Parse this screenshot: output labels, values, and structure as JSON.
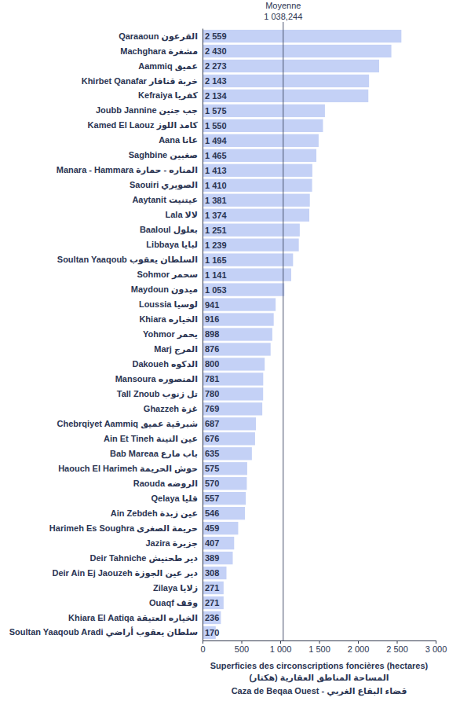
{
  "chart_data": {
    "type": "bar",
    "orientation": "horizontal",
    "categories": [
      "Qaraaoun القرعون",
      "Machghara مشغرة",
      "Aammiq عميق",
      "Khirbet Qanafar خربة قنافار",
      "Kefraiya كفريا",
      "Joubb Jannine جب جنين",
      "Kamed El Laouz كامد اللوز",
      "Aana عانا",
      "Saghbine صغبين",
      "Manara - Hammara المناره - حمارة",
      "Saouiri الصويري",
      "Aaytanit عيتنيت",
      "Lala لالا",
      "Baaloul بعلول",
      "Libbaya لبايا",
      "Soultan Yaaqoub السلطان يعقوب",
      "Sohmor سحمر",
      "Maydoun ميدون",
      "Loussia لوسيا",
      "Khiara الخياره",
      "Yohmor يحمر",
      "Marj المرج",
      "Dakoueh الدكوه",
      "Mansoura المنصوره",
      "Tall Znoub تل زنوب",
      "Ghazzeh غزة",
      "Chebrqiyet Aammiq شبرقية عميق",
      "Ain Et Tineh عين التينة",
      "Bab Mareaa باب مارع",
      "Haouch El Harimeh حوش الحريمة",
      "Raouda الروضه",
      "Qelaya قليا",
      "Ain Zebdeh عين زبدة",
      "Harimeh Es Soughra حريمة الصغرى",
      "Jazira جزيرة",
      "Deir Tahniche دير طحنيش",
      "Deir Ain Ej Jaouzeh دير عين الجوزة",
      "Zilaya زلايا",
      "Ouaqf وقف",
      "Khiara El Aatiqa الخياره العتيقة",
      "Soultan Yaaqoub Aradi سلطان يعقوب أراضي"
    ],
    "values": [
      2559,
      2430,
      2273,
      2143,
      2134,
      1575,
      1550,
      1494,
      1465,
      1413,
      1410,
      1381,
      1374,
      1251,
      1239,
      1165,
      1141,
      1053,
      941,
      916,
      898,
      876,
      800,
      781,
      780,
      769,
      687,
      676,
      635,
      575,
      570,
      557,
      546,
      459,
      407,
      389,
      308,
      271,
      271,
      236,
      170
    ],
    "value_labels": [
      "2 559",
      "2 430",
      "2 273",
      "2 143",
      "2 134",
      "1 575",
      "1 550",
      "1 494",
      "1 465",
      "1 413",
      "1 410",
      "1 381",
      "1 374",
      "1 251",
      "1 239",
      "1 165",
      "1 141",
      "1 053",
      "941",
      "916",
      "898",
      "876",
      "800",
      "781",
      "780",
      "769",
      "687",
      "676",
      "635",
      "575",
      "570",
      "557",
      "546",
      "459",
      "407",
      "389",
      "308",
      "271",
      "271",
      "236",
      "170"
    ],
    "data_labels": true,
    "color": "#c4d1f6",
    "grid": false,
    "xlim": [
      0,
      3000
    ],
    "xticks": [
      0,
      500,
      {
        "value": 1000,
        "label": "1 000"
      },
      {
        "value": 1500,
        "label": "1 500"
      },
      {
        "value": 2000,
        "label": "2 000"
      },
      {
        "value": 2500,
        "label": "2 500"
      },
      {
        "value": 3000,
        "label": "3 000"
      }
    ],
    "xlabel": [
      "Superficies des circonscriptions foncières (hectares)",
      "المساحة المناطق العقارية (هكتار)",
      "Caza de Beqaa Ouest - قضاء البقاع الغربي"
    ],
    "annotations": [
      {
        "text": "Moyenne",
        "value": 1038.244,
        "label": "1 038,244"
      }
    ]
  }
}
